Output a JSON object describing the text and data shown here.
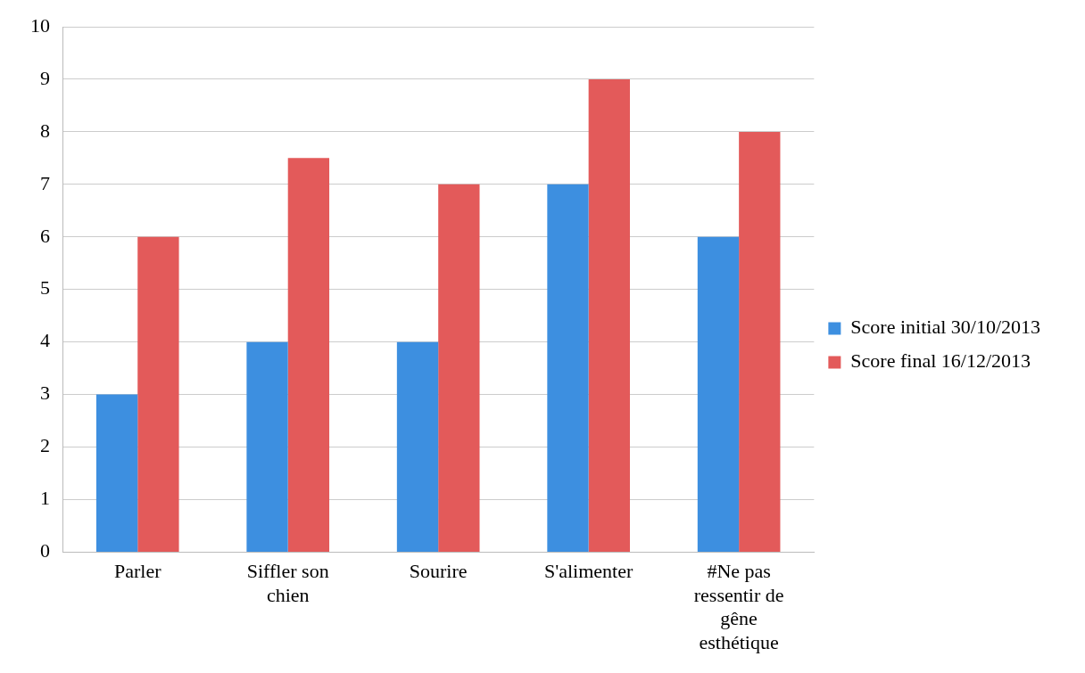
{
  "chart_data": {
    "type": "bar",
    "categories": [
      "Parler",
      "Siffler son chien",
      "Sourire",
      "S'alimenter",
      "#Ne pas ressentir de gêne esthétique"
    ],
    "series": [
      {
        "name": "Score initial 30/10/2013",
        "color": "#3d8fe0",
        "values": [
          3,
          4,
          4,
          7,
          6
        ]
      },
      {
        "name": "Score final 16/12/2013",
        "color": "#e35a5a",
        "values": [
          6,
          7.5,
          7,
          9,
          8
        ]
      }
    ],
    "ylim": [
      0,
      10
    ],
    "yticks": [
      0,
      1,
      2,
      3,
      4,
      5,
      6,
      7,
      8,
      9,
      10
    ],
    "grid": "y",
    "legend": "right"
  }
}
